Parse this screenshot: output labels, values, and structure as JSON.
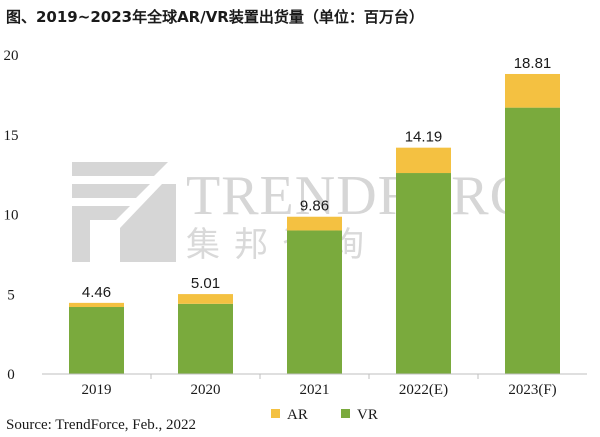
{
  "colors": {
    "vr": "#7aaa3d",
    "ar": "#f4c141",
    "axis": "#bfbfbf",
    "text": "#1a1a1a",
    "watermark": "#d6d6d6"
  },
  "watermark": {
    "brand": "TRENDFORCE",
    "sub": "集邦咨询"
  },
  "chart_data": {
    "type": "bar",
    "stacked": true,
    "title": "图、2019~2023年全球AR/VR装置出货量（单位：百万台）",
    "categories": [
      "2019",
      "2020",
      "2021",
      "2022(E)",
      "2023(F)"
    ],
    "series": [
      {
        "name": "VR",
        "values": [
          4.2,
          4.4,
          9.0,
          12.6,
          16.7
        ]
      },
      {
        "name": "AR",
        "values": [
          0.26,
          0.61,
          0.86,
          1.59,
          2.11
        ]
      }
    ],
    "totals": [
      "4.46",
      "5.01",
      "9.86",
      "14.19",
      "18.81"
    ],
    "yticks": [
      "0",
      "5",
      "10",
      "15",
      "20"
    ],
    "ylim": [
      0,
      20
    ],
    "grid": false,
    "legend_position": "bottom"
  },
  "source": "Source: TrendForce, Feb., 2022"
}
